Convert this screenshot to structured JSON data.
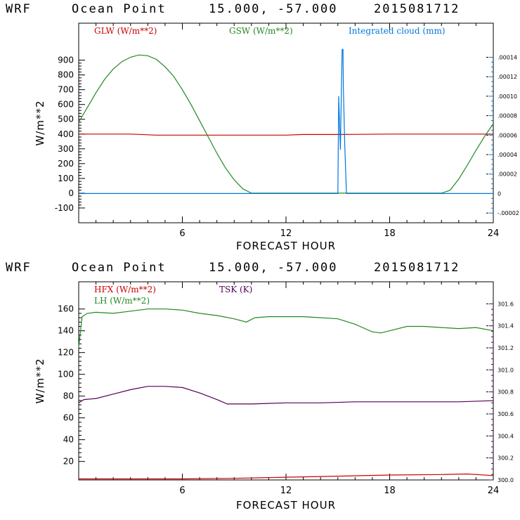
{
  "titles": [
    {
      "model": "WRF",
      "place": "Ocean Point",
      "coords": "15.000, -57.000",
      "run": "2015081712"
    },
    {
      "model": "WRF",
      "place": "Ocean Point",
      "coords": "15.000, -57.000",
      "run": "2015081712"
    }
  ],
  "colors": {
    "red": "#cc0000",
    "green": "#228822",
    "blue": "#0077dd",
    "purple": "#550055",
    "axis": "#000000"
  },
  "chart_data": [
    {
      "type": "line",
      "xlabel": "FORECAST HOUR",
      "ylabel": "W/m**2",
      "xlim": [
        0,
        24
      ],
      "ylim": [
        -200,
        1150
      ],
      "xticks": [
        6,
        12,
        18,
        24
      ],
      "yticks": [
        -100,
        0,
        100,
        200,
        300,
        400,
        500,
        600,
        700,
        800,
        900
      ],
      "y2lim": [
        -3e-05,
        0.000175
      ],
      "y2ticks": [
        {
          "v": 0.00014,
          "label": ".00014"
        },
        {
          "v": 0.00012,
          "label": ".00012"
        },
        {
          "v": 0.0001,
          "label": ".00010"
        },
        {
          "v": 8e-05,
          "label": ".00008"
        },
        {
          "v": 6e-05,
          "label": ".00006"
        },
        {
          "v": 4e-05,
          "label": ".00004"
        },
        {
          "v": 2e-05,
          "label": ".00002"
        },
        {
          "v": 0,
          "label": "0"
        },
        {
          "v": -2e-05,
          "label": "-.00002"
        }
      ],
      "series": [
        {
          "name": "GLW (W/m**2)",
          "color": "#cc0000",
          "axis": "left",
          "x": [
            0,
            3,
            4.5,
            6,
            9,
            12,
            13,
            15,
            18,
            21,
            24
          ],
          "y": [
            400,
            400,
            393,
            393,
            393,
            393,
            397,
            397,
            400,
            400,
            400
          ]
        },
        {
          "name": "GSW (W/m**2)",
          "color": "#228822",
          "axis": "left",
          "x": [
            0,
            0.5,
            1,
            1.5,
            2,
            2.5,
            3,
            3.5,
            4,
            4.5,
            5,
            5.5,
            6,
            6.5,
            7,
            7.5,
            8,
            8.5,
            9,
            9.5,
            10,
            10.5,
            12,
            15,
            18,
            21,
            21.5,
            22,
            22.5,
            23,
            23.5,
            24
          ],
          "y": [
            480,
            580,
            680,
            770,
            840,
            890,
            920,
            935,
            930,
            905,
            855,
            790,
            700,
            600,
            490,
            380,
            270,
            170,
            90,
            30,
            0,
            0,
            0,
            0,
            0,
            0,
            20,
            95,
            190,
            290,
            385,
            470
          ]
        },
        {
          "name": "Integrated cloud (mm)",
          "color": "#0077dd",
          "axis": "right",
          "x": [
            0,
            15.0,
            15.05,
            15.15,
            15.2,
            15.25,
            15.3,
            15.32,
            15.4,
            15.5,
            24
          ],
          "y": [
            0,
            0,
            0.0001,
            4.5e-05,
            0.0001,
            0.000148,
            0.000148,
            0.00011,
            5e-05,
            0,
            0
          ]
        }
      ]
    },
    {
      "type": "line",
      "xlabel": "FORECAST HOUR",
      "ylabel": "W/m**2",
      "xlim": [
        0,
        24
      ],
      "ylim": [
        3,
        185
      ],
      "xticks": [
        6,
        12,
        18,
        24
      ],
      "yticks": [
        20,
        40,
        60,
        80,
        100,
        120,
        140,
        160
      ],
      "y2lim": [
        300.0,
        301.8
      ],
      "y2ticks": [
        {
          "v": 301.6,
          "label": "301.6"
        },
        {
          "v": 301.4,
          "label": "301.4"
        },
        {
          "v": 301.2,
          "label": "301.2"
        },
        {
          "v": 301.0,
          "label": "301.0"
        },
        {
          "v": 300.8,
          "label": "300.8"
        },
        {
          "v": 300.6,
          "label": "300.6"
        },
        {
          "v": 300.4,
          "label": "300.4"
        },
        {
          "v": 300.2,
          "label": "300.2"
        },
        {
          "v": 300.0,
          "label": "300.0"
        }
      ],
      "series": [
        {
          "name": "HFX (W/m**2)",
          "color": "#cc0000",
          "axis": "left",
          "x": [
            0,
            3,
            6,
            9,
            12,
            15,
            18,
            21,
            22.5,
            24
          ],
          "y": [
            4,
            4,
            4,
            4.5,
            5.5,
            6.5,
            7.5,
            8,
            8.5,
            7
          ]
        },
        {
          "name": "LH (W/m**2)",
          "color": "#228822",
          "axis": "left",
          "x": [
            0,
            0.2,
            0.5,
            1,
            2,
            3,
            4,
            5,
            6,
            7,
            8,
            9,
            9.7,
            10.2,
            11,
            12,
            13,
            14,
            15,
            16,
            17,
            17.5,
            18,
            19,
            20,
            21,
            22,
            23,
            24
          ],
          "y": [
            125,
            153,
            156,
            157,
            156,
            158,
            160,
            160,
            159,
            156,
            154,
            151,
            148,
            152,
            153,
            153,
            153,
            152,
            151,
            146,
            139,
            138,
            140,
            144,
            144,
            143,
            142,
            143,
            140
          ]
        },
        {
          "name": "TSK (K)",
          "color": "#550055",
          "axis": "right",
          "x": [
            0,
            0.3,
            1,
            2,
            3,
            4,
            5,
            6,
            7,
            8,
            8.6,
            9,
            10,
            12,
            14,
            16,
            18,
            20,
            22,
            24
          ],
          "y": [
            300.7,
            300.73,
            300.74,
            300.78,
            300.82,
            300.85,
            300.85,
            300.84,
            300.79,
            300.73,
            300.69,
            300.69,
            300.69,
            300.7,
            300.7,
            300.71,
            300.71,
            300.71,
            300.71,
            300.72
          ]
        }
      ]
    }
  ]
}
